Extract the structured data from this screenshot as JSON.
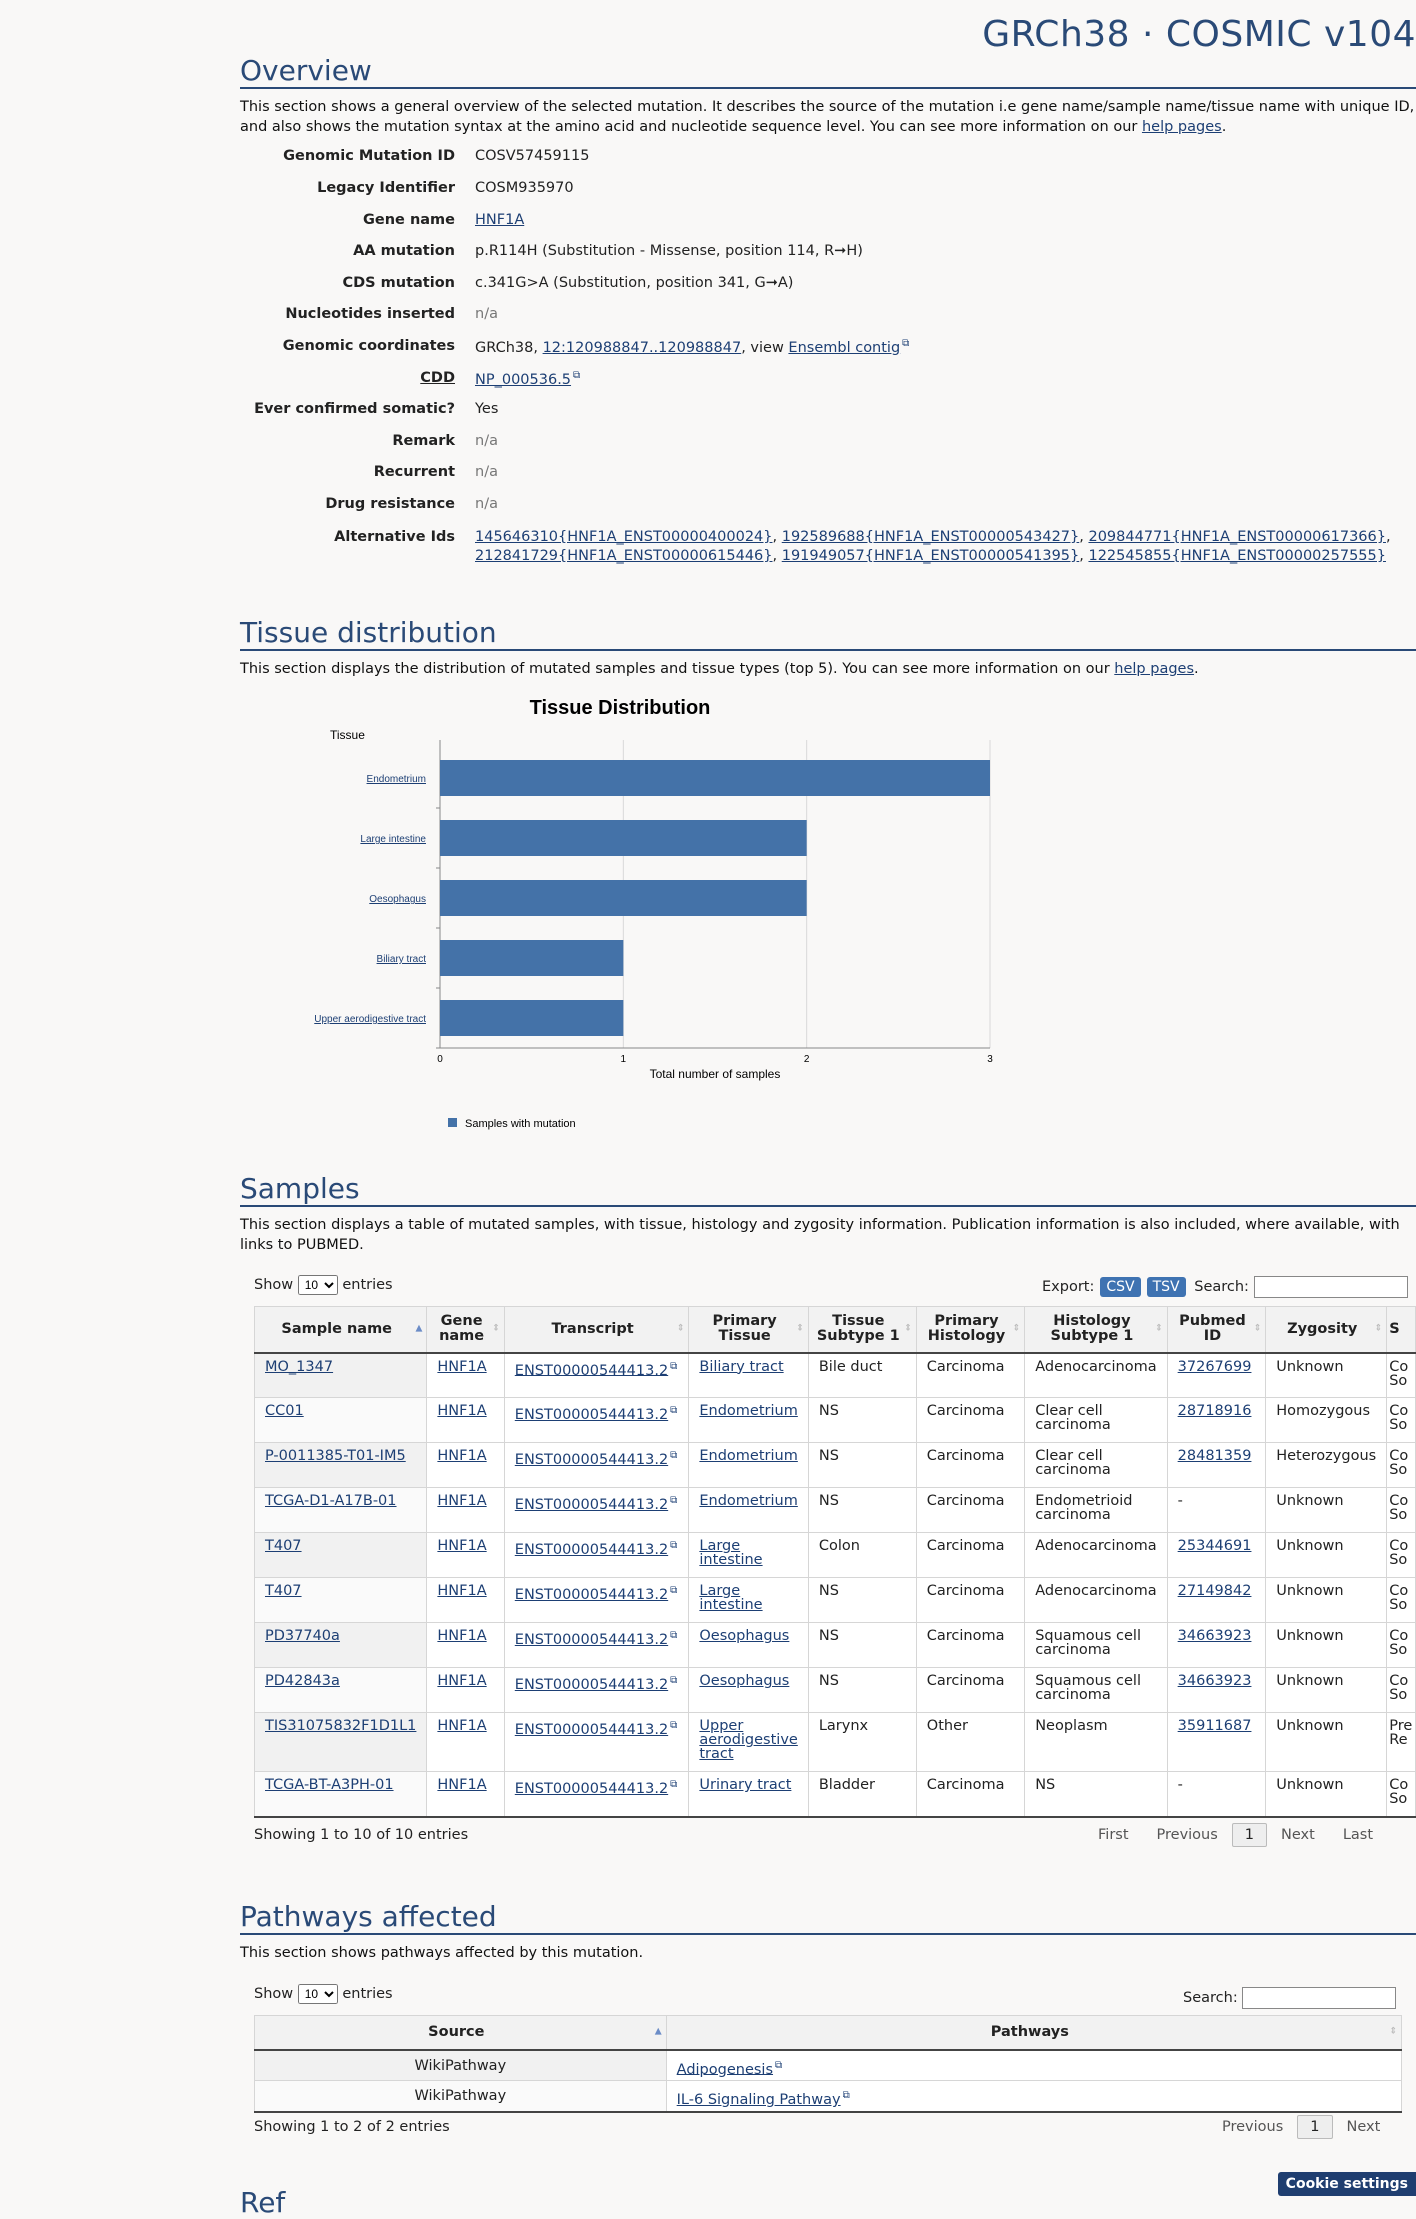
{
  "header": {
    "build": "GRCh38 · COSMIC v104"
  },
  "overview": {
    "title": "Overview",
    "desc_pre": "This section shows a general overview of the selected mutation. It describes the source of the mutation i.e gene name/sample name/tissue name with unique ID, and also shows the mutation syntax at the amino acid and nucleotide sequence level. You can see more information on our ",
    "help_link": "help pages",
    "desc_post": ".",
    "fields": {
      "genomic_mutation_id": {
        "label": "Genomic Mutation ID",
        "value": "COSV57459115"
      },
      "legacy_identifier": {
        "label": "Legacy Identifier",
        "value": "COSM935970"
      },
      "gene_name": {
        "label": "Gene name",
        "value": "HNF1A"
      },
      "aa_mutation": {
        "label": "AA mutation",
        "value": "p.R114H (Substitution - Missense, position 114, R➞H)"
      },
      "cds_mutation": {
        "label": "CDS mutation",
        "value": "c.341G>A (Substitution, position 341, G➞A)"
      },
      "nucleotides_inserted": {
        "label": "Nucleotides inserted",
        "value": "n/a"
      },
      "genomic_coordinates": {
        "label": "Genomic coordinates",
        "prefix": "GRCh38, ",
        "coord_link": "12:120988847..120988847",
        "mid": ", view ",
        "ensembl_link": "Ensembl contig"
      },
      "cdd": {
        "label": "CDD",
        "value": "NP_000536.5"
      },
      "ever_confirmed": {
        "label": "Ever confirmed somatic?",
        "value": "Yes"
      },
      "remark": {
        "label": "Remark",
        "value": "n/a"
      },
      "recurrent": {
        "label": "Recurrent",
        "value": "n/a"
      },
      "drug_resistance": {
        "label": "Drug resistance",
        "value": "n/a"
      },
      "alternative_ids": {
        "label": "Alternative Ids",
        "ids": [
          "145646310{HNF1A_ENST00000400024}",
          "192589688{HNF1A_ENST00000543427}",
          "209844771{HNF1A_ENST00000617366}",
          "212841729{HNF1A_ENST00000615446}",
          "191949057{HNF1A_ENST00000541395}",
          "122545855{HNF1A_ENST00000257555}"
        ]
      }
    }
  },
  "tissue": {
    "title": "Tissue distribution",
    "desc_pre": "This section displays the distribution of mutated samples and tissue types (top 5). You can see more information on our ",
    "help_link": "help pages",
    "desc_post": "."
  },
  "chart_data": {
    "type": "bar",
    "orientation": "horizontal",
    "title": "Tissue Distribution",
    "ylabel": "Tissue",
    "xlabel": "Total number of samples",
    "categories": [
      "Endometrium",
      "Large intestine",
      "Oesophagus",
      "Biliary tract",
      "Upper aerodigestive tract"
    ],
    "series": [
      {
        "name": "Samples with mutation",
        "values": [
          3,
          2,
          2,
          1,
          1
        ],
        "color": "#4472a8"
      }
    ],
    "xlim": [
      0,
      3
    ],
    "xticks": [
      "0",
      "1",
      "2",
      "3"
    ],
    "grid": true,
    "legend": "bottom-left"
  },
  "samples": {
    "title": "Samples",
    "desc": "This section displays a table of mutated samples, with tissue, histology and zygosity information. Publication information is also included, where available, with links to PUBMED.",
    "show_label": "Show",
    "entries_label": "entries",
    "page_size": "10",
    "export_label": "Export:",
    "csv": "CSV",
    "tsv": "TSV",
    "search_label": "Search:",
    "columns": [
      "Sample name",
      "Gene name",
      "Transcript",
      "Primary Tissue",
      "Tissue Subtype 1",
      "Primary Histology",
      "Histology Subtype 1",
      "Pubmed ID",
      "Zygosity",
      "S"
    ],
    "rows": [
      [
        "MO_1347",
        "HNF1A",
        "ENST00000544413.2",
        "Biliary tract",
        "Bile duct",
        "Carcinoma",
        "Adenocarcinoma",
        "37267699",
        "Unknown",
        "Co So"
      ],
      [
        "CC01",
        "HNF1A",
        "ENST00000544413.2",
        "Endometrium",
        "NS",
        "Carcinoma",
        "Clear cell carcinoma",
        "28718916",
        "Homozygous",
        "Co So"
      ],
      [
        "P-0011385-T01-IM5",
        "HNF1A",
        "ENST00000544413.2",
        "Endometrium",
        "NS",
        "Carcinoma",
        "Clear cell carcinoma",
        "28481359",
        "Heterozygous",
        "Co So"
      ],
      [
        "TCGA-D1-A17B-01",
        "HNF1A",
        "ENST00000544413.2",
        "Endometrium",
        "NS",
        "Carcinoma",
        "Endometrioid carcinoma",
        "-",
        "Unknown",
        "Co So"
      ],
      [
        "T407",
        "HNF1A",
        "ENST00000544413.2",
        "Large intestine",
        "Colon",
        "Carcinoma",
        "Adenocarcinoma",
        "25344691",
        "Unknown",
        "Co So"
      ],
      [
        "T407",
        "HNF1A",
        "ENST00000544413.2",
        "Large intestine",
        "NS",
        "Carcinoma",
        "Adenocarcinoma",
        "27149842",
        "Unknown",
        "Co So"
      ],
      [
        "PD37740a",
        "HNF1A",
        "ENST00000544413.2",
        "Oesophagus",
        "NS",
        "Carcinoma",
        "Squamous cell carcinoma",
        "34663923",
        "Unknown",
        "Co So"
      ],
      [
        "PD42843a",
        "HNF1A",
        "ENST00000544413.2",
        "Oesophagus",
        "NS",
        "Carcinoma",
        "Squamous cell carcinoma",
        "34663923",
        "Unknown",
        "Co So"
      ],
      [
        "TIS31075832F1D1L1",
        "HNF1A",
        "ENST00000544413.2",
        "Upper aerodigestive tract",
        "Larynx",
        "Other",
        "Neoplasm",
        "35911687",
        "Unknown",
        "Pre Re"
      ],
      [
        "TCGA-BT-A3PH-01",
        "HNF1A",
        "ENST00000544413.2",
        "Urinary tract",
        "Bladder",
        "Carcinoma",
        "NS",
        "-",
        "Unknown",
        "Co So"
      ]
    ],
    "info": "Showing 1 to 10 of 10 entries",
    "pager": {
      "first": "First",
      "previous": "Previous",
      "page": "1",
      "next": "Next",
      "last": "Last"
    }
  },
  "pathways": {
    "title": "Pathways affected",
    "desc": "This section shows pathways affected by this mutation.",
    "show_label": "Show",
    "entries_label": "entries",
    "page_size": "10",
    "search_label": "Search:",
    "columns": [
      "Source",
      "Pathways"
    ],
    "rows": [
      [
        "WikiPathway",
        "Adipogenesis"
      ],
      [
        "WikiPathway",
        "IL-6 Signaling Pathway"
      ]
    ],
    "info": "Showing 1 to 2 of 2 entries",
    "pager": {
      "previous": "Previous",
      "page": "1",
      "next": "Next"
    }
  },
  "references": {
    "title_partial": "Ref"
  },
  "cookie": {
    "label": "Cookie settings"
  }
}
